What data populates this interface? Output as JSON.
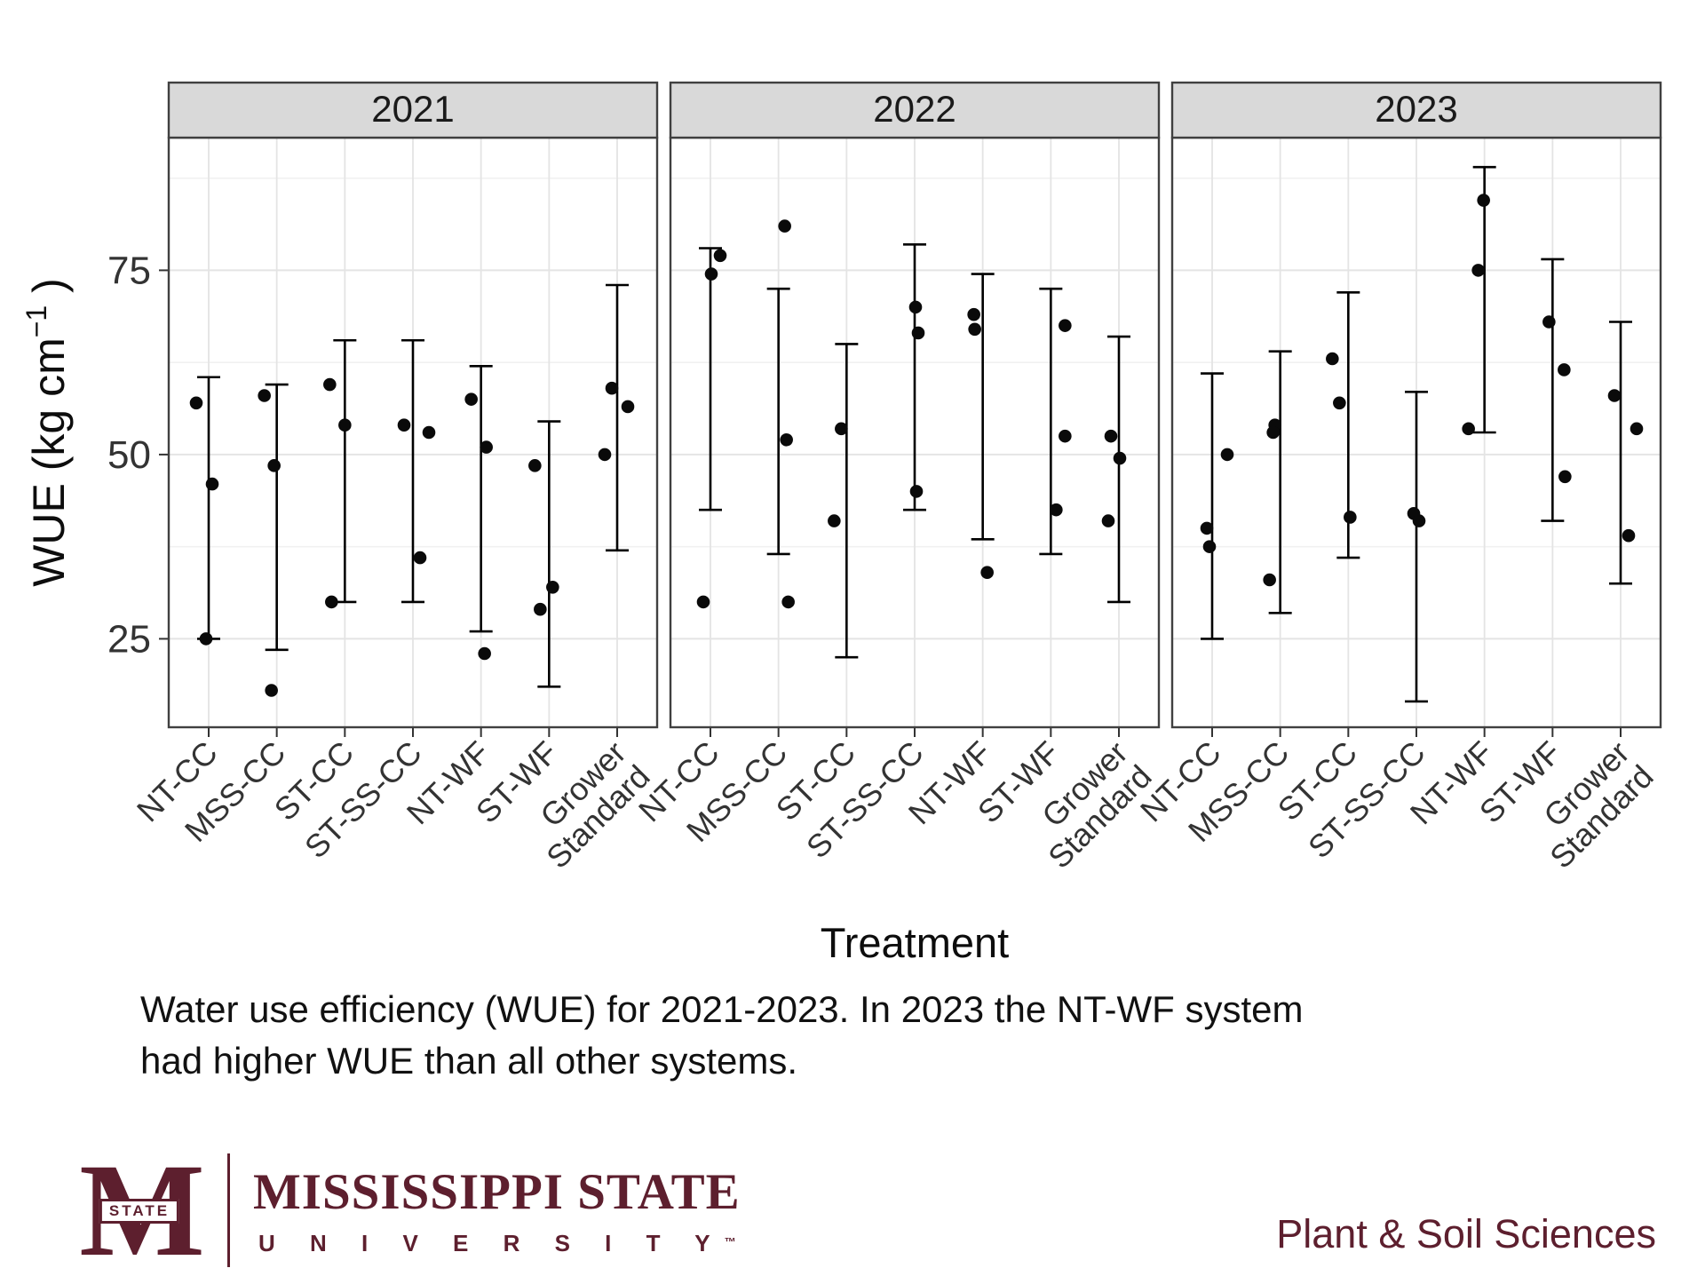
{
  "chart_data": {
    "type": "scatter",
    "facet_variable": "Year",
    "xlabel": "Treatment",
    "ylabel": {
      "main": "WUE (kg cm",
      "sup": "−1",
      "end": " )"
    },
    "ylim": [
      13,
      93
    ],
    "yticks": [
      25,
      50,
      75
    ],
    "grid": {
      "major": [
        25,
        50,
        75
      ],
      "minor": [
        37.5,
        62.5,
        87.5
      ]
    },
    "categories": [
      "NT-CC",
      "MSS-CC",
      "ST-CC",
      "ST-SS-CC",
      "NT-WF",
      "ST-WF",
      "Grower Standard"
    ],
    "facets": [
      {
        "label": "2021",
        "treatments": [
          {
            "name": "NT-CC",
            "points": [
              {
                "v": 57,
                "dx": -14
              },
              {
                "v": 46,
                "dx": 4
              },
              {
                "v": 25,
                "dx": -3
              }
            ],
            "bar": [
              25,
              60.5
            ]
          },
          {
            "name": "MSS-CC",
            "points": [
              {
                "v": 58,
                "dx": -14
              },
              {
                "v": 48.5,
                "dx": -3
              },
              {
                "v": 18,
                "dx": -6
              }
            ],
            "bar": [
              23.5,
              59.5
            ]
          },
          {
            "name": "ST-CC",
            "points": [
              {
                "v": 59.5,
                "dx": -17
              },
              {
                "v": 54,
                "dx": 0
              },
              {
                "v": 30,
                "dx": -15
              }
            ],
            "bar": [
              30,
              65.5
            ]
          },
          {
            "name": "ST-SS-CC",
            "points": [
              {
                "v": 54,
                "dx": -10
              },
              {
                "v": 53,
                "dx": 18
              },
              {
                "v": 36,
                "dx": 8
              }
            ],
            "bar": [
              30,
              65.5
            ]
          },
          {
            "name": "NT-WF",
            "points": [
              {
                "v": 57.5,
                "dx": -11
              },
              {
                "v": 51,
                "dx": 6
              },
              {
                "v": 23,
                "dx": 4
              }
            ],
            "bar": [
              26,
              62
            ]
          },
          {
            "name": "ST-WF",
            "points": [
              {
                "v": 48.5,
                "dx": -16
              },
              {
                "v": 32,
                "dx": 4
              },
              {
                "v": 29,
                "dx": -10
              }
            ],
            "bar": [
              18.5,
              54.5
            ]
          },
          {
            "name": "Grower Standard",
            "points": [
              {
                "v": 59,
                "dx": -6
              },
              {
                "v": 56.5,
                "dx": 12
              },
              {
                "v": 50,
                "dx": -14
              }
            ],
            "bar": [
              37,
              73
            ]
          }
        ]
      },
      {
        "label": "2022",
        "treatments": [
          {
            "name": "NT-CC",
            "points": [
              {
                "v": 77,
                "dx": 11
              },
              {
                "v": 74.5,
                "dx": 1
              },
              {
                "v": 30,
                "dx": -8
              }
            ],
            "bar": [
              42.5,
              78
            ]
          },
          {
            "name": "MSS-CC",
            "points": [
              {
                "v": 81,
                "dx": 7
              },
              {
                "v": 52,
                "dx": 9
              },
              {
                "v": 30,
                "dx": 11
              }
            ],
            "bar": [
              36.5,
              72.5
            ]
          },
          {
            "name": "ST-CC",
            "points": [
              {
                "v": 53.5,
                "dx": -6
              },
              {
                "v": 41,
                "dx": -14
              }
            ],
            "bar": [
              22.5,
              65
            ]
          },
          {
            "name": "ST-SS-CC",
            "points": [
              {
                "v": 70,
                "dx": 1
              },
              {
                "v": 66.5,
                "dx": 4
              },
              {
                "v": 45,
                "dx": 2
              }
            ],
            "bar": [
              42.5,
              78.5
            ]
          },
          {
            "name": "NT-WF",
            "points": [
              {
                "v": 69,
                "dx": -10
              },
              {
                "v": 67,
                "dx": -9
              },
              {
                "v": 34,
                "dx": 5
              }
            ],
            "bar": [
              38.5,
              74.5
            ]
          },
          {
            "name": "ST-WF",
            "points": [
              {
                "v": 67.5,
                "dx": 16
              },
              {
                "v": 52.5,
                "dx": 16
              },
              {
                "v": 42.5,
                "dx": 6
              }
            ],
            "bar": [
              36.5,
              72.5
            ]
          },
          {
            "name": "Grower Standard",
            "points": [
              {
                "v": 52.5,
                "dx": -9
              },
              {
                "v": 49.5,
                "dx": 1
              },
              {
                "v": 41,
                "dx": -12
              }
            ],
            "bar": [
              30,
              66
            ]
          }
        ]
      },
      {
        "label": "2023",
        "treatments": [
          {
            "name": "NT-CC",
            "points": [
              {
                "v": 50,
                "dx": 17
              },
              {
                "v": 40,
                "dx": -6
              },
              {
                "v": 37.5,
                "dx": -3
              }
            ],
            "bar": [
              25,
              61
            ]
          },
          {
            "name": "MSS-CC",
            "points": [
              {
                "v": 54,
                "dx": -6
              },
              {
                "v": 53,
                "dx": -8
              },
              {
                "v": 33,
                "dx": -12
              }
            ],
            "bar": [
              28.5,
              64
            ]
          },
          {
            "name": "ST-CC",
            "points": [
              {
                "v": 63,
                "dx": -18
              },
              {
                "v": 57,
                "dx": -10
              },
              {
                "v": 41.5,
                "dx": 2
              }
            ],
            "bar": [
              36,
              72
            ]
          },
          {
            "name": "ST-SS-CC",
            "points": [
              {
                "v": 42,
                "dx": -3
              },
              {
                "v": 41,
                "dx": 3
              }
            ],
            "bar": [
              16.5,
              58.5
            ]
          },
          {
            "name": "NT-WF",
            "points": [
              {
                "v": 84.5,
                "dx": -1
              },
              {
                "v": 75,
                "dx": -7
              },
              {
                "v": 53.5,
                "dx": -18
              }
            ],
            "bar": [
              53,
              89
            ]
          },
          {
            "name": "ST-WF",
            "points": [
              {
                "v": 68,
                "dx": -4
              },
              {
                "v": 61.5,
                "dx": 13
              },
              {
                "v": 47,
                "dx": 14
              }
            ],
            "bar": [
              41,
              76.5
            ]
          },
          {
            "name": "Grower Standard",
            "points": [
              {
                "v": 58,
                "dx": -7
              },
              {
                "v": 53.5,
                "dx": 18
              },
              {
                "v": 39,
                "dx": 9
              }
            ],
            "bar": [
              32.5,
              68
            ]
          }
        ]
      }
    ]
  },
  "caption": {
    "line1": "Water use efficiency (WUE) for 2021-2023. In 2023 the NT-WF system",
    "line2": "had higher WUE than all other systems."
  },
  "footer": {
    "logo_m": "M",
    "logo_banner": "STATE",
    "wordmark_line1": "MISSISSIPPI STATE",
    "wordmark_line2": "U N I V E R S I T Y",
    "trademark": "™",
    "department": "Plant & Soil Sciences"
  },
  "colors": {
    "maroon": "#5d1f2e",
    "dot": "#0a0a0a",
    "error_bar": "#000000",
    "strip_fill": "#d9d9d9",
    "panel_border": "#404040",
    "grid_major": "#e4e4e4",
    "grid_minor": "#f1f1f1",
    "axis_text": "#333333",
    "title_text": "#0d0d0d"
  }
}
